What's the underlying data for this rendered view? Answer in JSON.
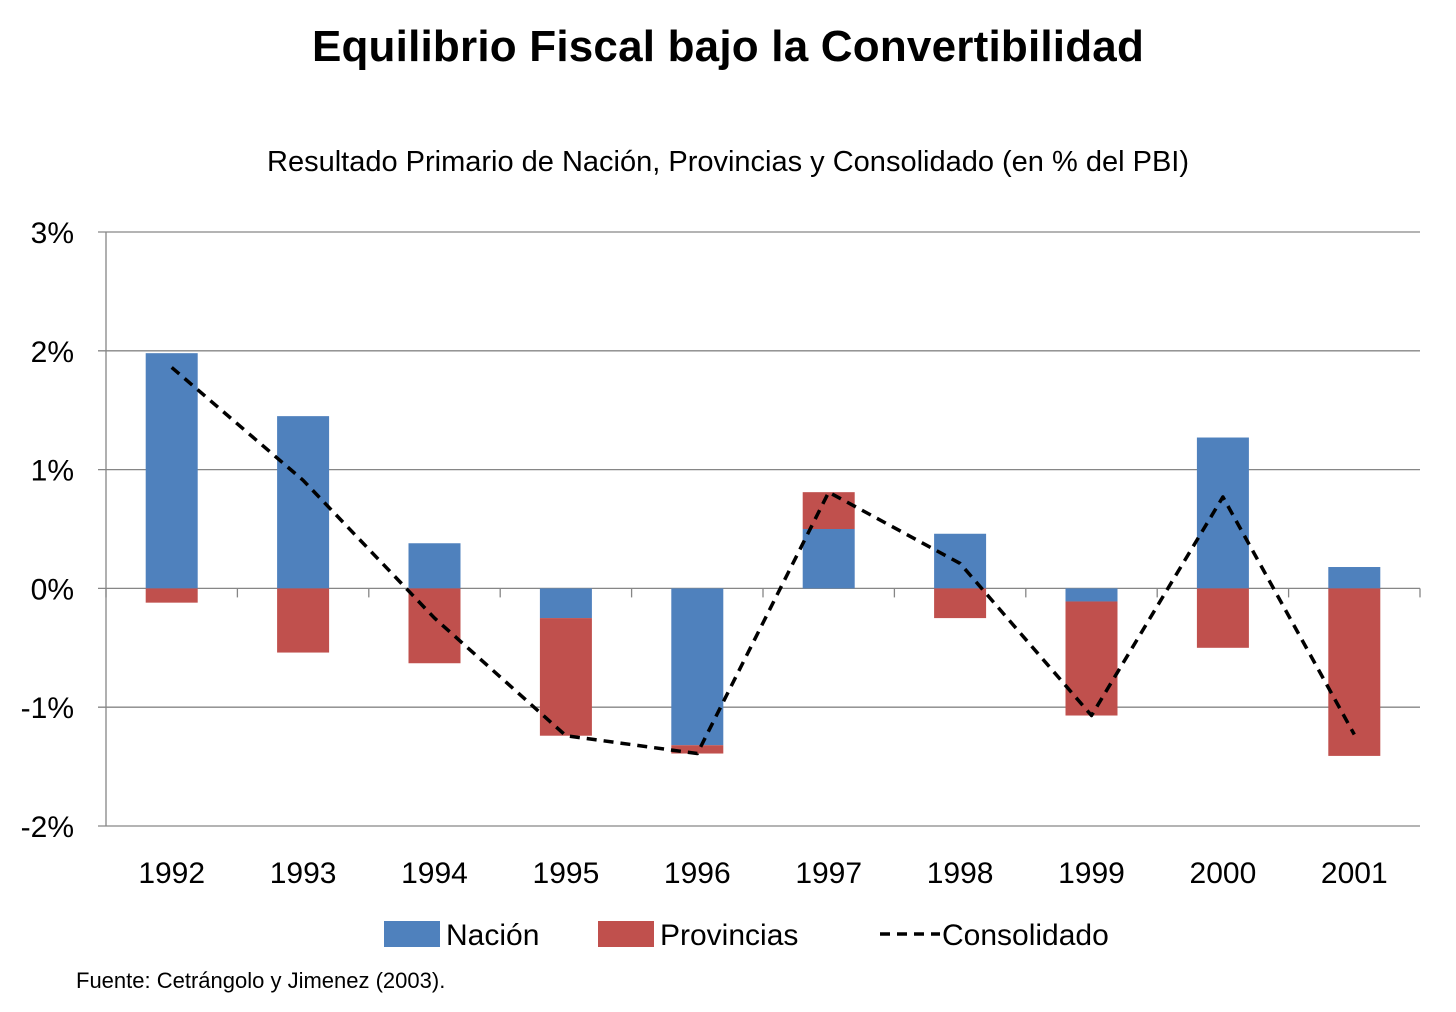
{
  "chart_data": {
    "type": "bar",
    "title": "Equilibrio Fiscal bajo la Convertibilidad",
    "subtitle": "Resultado Primario de Nación, Provincias y Consolidado (en % del PBI)",
    "source": "Fuente: Cetrángolo y Jimenez (2003).",
    "stacked": true,
    "categories": [
      "1992",
      "1993",
      "1994",
      "1995",
      "1996",
      "1997",
      "1998",
      "1999",
      "2000",
      "2001"
    ],
    "series": [
      {
        "name": "Nación",
        "type": "bar",
        "color": "#4F81BD",
        "values": [
          1.98,
          1.45,
          0.38,
          -0.25,
          -1.32,
          0.5,
          0.46,
          -0.11,
          1.27,
          0.18
        ]
      },
      {
        "name": "Provincias",
        "type": "bar",
        "color": "#C0504D",
        "values": [
          -0.12,
          -0.54,
          -0.63,
          -0.99,
          -0.07,
          0.31,
          -0.25,
          -0.96,
          -0.5,
          -1.41
        ]
      },
      {
        "name": "Consolidado",
        "type": "line",
        "style": "dashed",
        "color": "#000000",
        "values": [
          1.86,
          0.91,
          -0.25,
          -1.24,
          -1.39,
          0.81,
          0.21,
          -1.07,
          0.77,
          -1.23
        ]
      }
    ],
    "ylim": [
      -2,
      3
    ],
    "yticks": [
      "-2%",
      "-1%",
      "0%",
      "1%",
      "2%",
      "3%"
    ],
    "ytick_values": [
      -2,
      -1,
      0,
      1,
      2,
      3
    ],
    "grid": true,
    "legend_position": "bottom",
    "xlabel": "",
    "ylabel": ""
  }
}
